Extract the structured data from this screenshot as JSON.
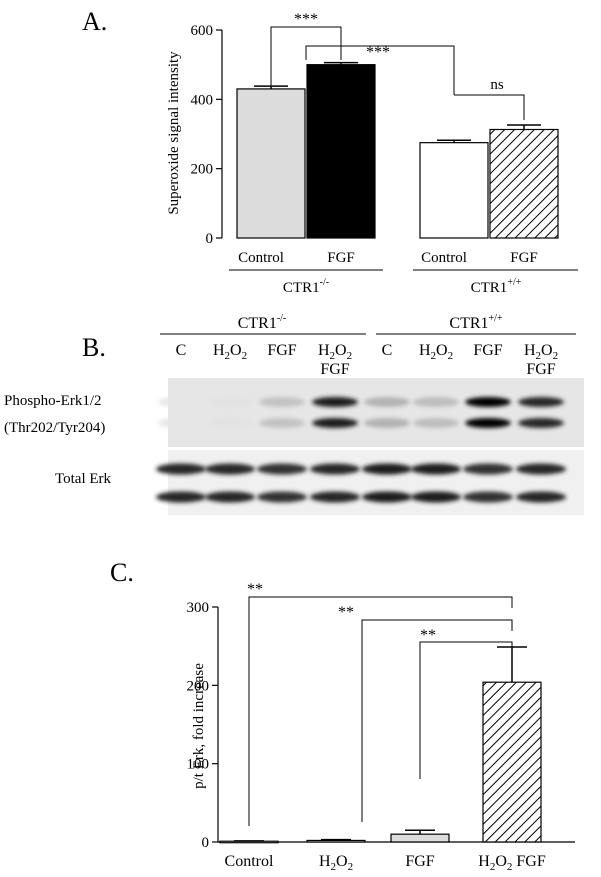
{
  "panel_a": {
    "label": "A.",
    "ylabel": "Superoxide signal intensity",
    "yticks": [
      "0",
      "200",
      "400",
      "600"
    ],
    "bars": [
      {
        "label": "Control",
        "value": 430,
        "error": 8,
        "fill": "#dcdcdc",
        "pattern": "solid"
      },
      {
        "label": "FGF",
        "value": 500,
        "error": 6,
        "fill": "#000000",
        "pattern": "solid"
      },
      {
        "label": "Control",
        "value": 275,
        "error": 7,
        "fill": "#ffffff",
        "pattern": "solid"
      },
      {
        "label": "FGF",
        "value": 313,
        "error": 13,
        "fill": "#ffffff",
        "pattern": "hatch"
      }
    ],
    "group1": {
      "name": "CTR1",
      "sup": "-/-"
    },
    "group2": {
      "name": "CTR1",
      "sup": "+/+"
    },
    "sig_within_ko": "***",
    "sig_between": "***",
    "sig_within_wt": "ns",
    "ylim": [
      0,
      600
    ]
  },
  "panel_b": {
    "label": "B.",
    "group1": {
      "name": "CTR1",
      "sup": "-/-"
    },
    "group2": {
      "name": "CTR1",
      "sup": "+/+"
    },
    "lanes": [
      "C",
      "H2O2",
      "FGF",
      "H2O2 FGF",
      "C",
      "H2O2",
      "FGF",
      "H2O2 FGF"
    ],
    "phospho_label_line1": "Phospho-Erk1/2",
    "phospho_label_line2": "(Thr202/Tyr204)",
    "total_label": "Total Erk",
    "phospho_intensity": [
      0.02,
      0.04,
      0.18,
      0.9,
      0.25,
      0.2,
      1.0,
      0.85
    ],
    "total_intensity": [
      0.85,
      0.85,
      0.8,
      0.85,
      0.9,
      0.9,
      0.8,
      0.85
    ]
  },
  "panel_c": {
    "label": "C.",
    "ylabel": "p/t Erk, fold increase",
    "yticks": [
      "0",
      "100",
      "200",
      "300"
    ],
    "sig1": "**",
    "sig2": "**",
    "sig3": "**"
  },
  "chart_data": [
    {
      "type": "bar",
      "title": "A.",
      "ylabel": "Superoxide signal intensity",
      "categories": [
        "Control",
        "FGF",
        "Control",
        "FGF"
      ],
      "groups": [
        "CTR1-/-",
        "CTR1-/-",
        "CTR1+/+",
        "CTR1+/+"
      ],
      "values": [
        430,
        500,
        275,
        313
      ],
      "errors": [
        8,
        6,
        7,
        13
      ],
      "ylim": [
        0,
        600
      ]
    },
    {
      "type": "bar",
      "title": "C.",
      "ylabel": "p/t Erk, fold increase",
      "categories": [
        "Control",
        "H2O2",
        "FGF",
        "H2O2 FGF"
      ],
      "values": [
        1,
        2,
        10,
        204
      ],
      "errors": [
        0.5,
        1,
        5,
        45
      ],
      "ylim": [
        0,
        300
      ]
    }
  ]
}
